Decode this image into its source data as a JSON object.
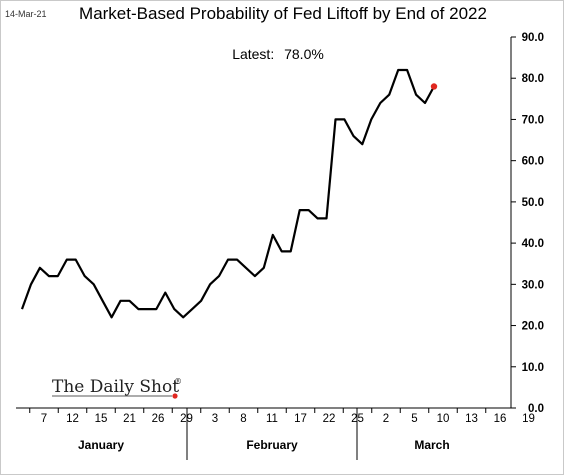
{
  "header": {
    "date_stamp": "14-Mar-21"
  },
  "annotation": {
    "latest_label": "Latest:",
    "latest_value": "78.0%"
  },
  "logo": {
    "text": "The Daily Shot",
    "mark": "®",
    "dot_color": "#e0271f"
  },
  "chart_data": {
    "type": "line",
    "title": "Market-Based Probability of Fed Liftoff by End of 2022",
    "xlabel": "",
    "ylabel": "",
    "ylim": [
      0,
      90
    ],
    "y_ticks": [
      "0.0",
      "10.0",
      "20.0",
      "30.0",
      "40.0",
      "50.0",
      "60.0",
      "70.0",
      "80.0",
      "90.0"
    ],
    "y_axis_position": "right",
    "grid": false,
    "line_color": "#000000",
    "last_point_color": "#e0271f",
    "x_tick_labels": [
      "7",
      "12",
      "15",
      "21",
      "26",
      "29",
      "3",
      "8",
      "11",
      "17",
      "22",
      "25",
      "2",
      "5",
      "10",
      "13",
      "16",
      "19"
    ],
    "months": [
      "January",
      "February",
      "March"
    ],
    "series": [
      {
        "values": [
          24,
          30,
          34,
          32,
          32,
          36,
          36,
          32,
          30,
          26,
          22,
          26,
          26,
          24,
          24,
          24,
          28,
          24,
          22,
          24,
          26,
          30,
          32,
          36,
          36,
          34,
          32,
          34,
          42,
          38,
          38,
          48,
          48,
          46,
          46,
          70,
          70,
          66,
          64,
          70,
          74,
          76,
          82,
          82,
          76,
          74,
          78
        ]
      }
    ]
  }
}
